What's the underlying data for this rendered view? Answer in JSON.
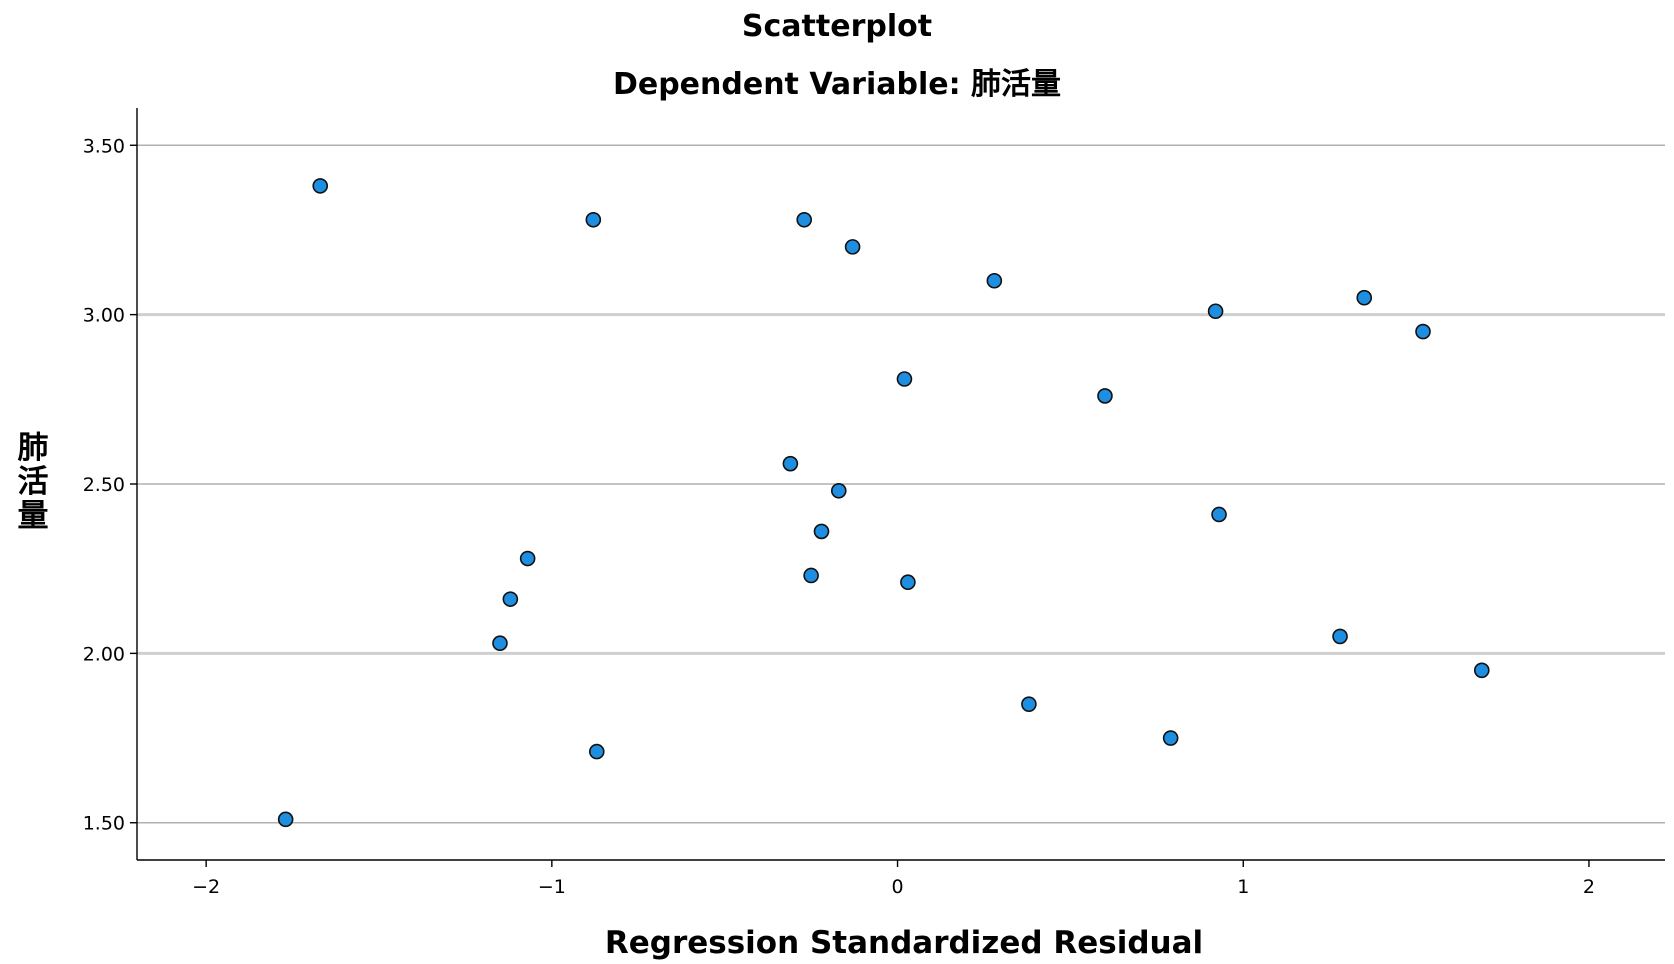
{
  "chart_data": {
    "type": "scatter",
    "title": "Scatterplot",
    "subtitle": "Dependent Variable: 肺活量",
    "xlabel": "Regression Standardized Residual",
    "ylabel": "肺活量",
    "xlim": [
      -2.2,
      2.22
    ],
    "ylim": [
      1.39,
      3.61
    ],
    "xticks": [
      -2,
      -1,
      0,
      1,
      2
    ],
    "xtick_labels": [
      "-2",
      "-1",
      "0",
      "1",
      "2"
    ],
    "yticks": [
      1.5,
      2.0,
      2.5,
      3.0,
      3.5
    ],
    "ytick_labels": [
      "1.50",
      "2.00",
      "2.50",
      "3.00",
      "3.50"
    ],
    "grid": "horizontal",
    "marker_color": "#1e8ee0",
    "marker_edge_color": "#111111",
    "points": [
      {
        "x": -1.67,
        "y": 3.38
      },
      {
        "x": -0.88,
        "y": 3.28
      },
      {
        "x": -0.27,
        "y": 3.28
      },
      {
        "x": -0.13,
        "y": 3.2
      },
      {
        "x": 0.28,
        "y": 3.1
      },
      {
        "x": 0.92,
        "y": 3.01
      },
      {
        "x": 1.35,
        "y": 3.05
      },
      {
        "x": 1.52,
        "y": 2.95
      },
      {
        "x": 0.02,
        "y": 2.81
      },
      {
        "x": 0.6,
        "y": 2.76
      },
      {
        "x": -0.31,
        "y": 2.56
      },
      {
        "x": -0.17,
        "y": 2.48
      },
      {
        "x": 0.93,
        "y": 2.41
      },
      {
        "x": -0.22,
        "y": 2.36
      },
      {
        "x": -1.07,
        "y": 2.28
      },
      {
        "x": -0.25,
        "y": 2.23
      },
      {
        "x": 0.03,
        "y": 2.21
      },
      {
        "x": -1.12,
        "y": 2.16
      },
      {
        "x": -1.15,
        "y": 2.03
      },
      {
        "x": 1.28,
        "y": 2.05
      },
      {
        "x": 1.69,
        "y": 1.95
      },
      {
        "x": 0.38,
        "y": 1.85
      },
      {
        "x": 0.79,
        "y": 1.75
      },
      {
        "x": -0.87,
        "y": 1.71
      },
      {
        "x": -1.77,
        "y": 1.51
      }
    ]
  }
}
